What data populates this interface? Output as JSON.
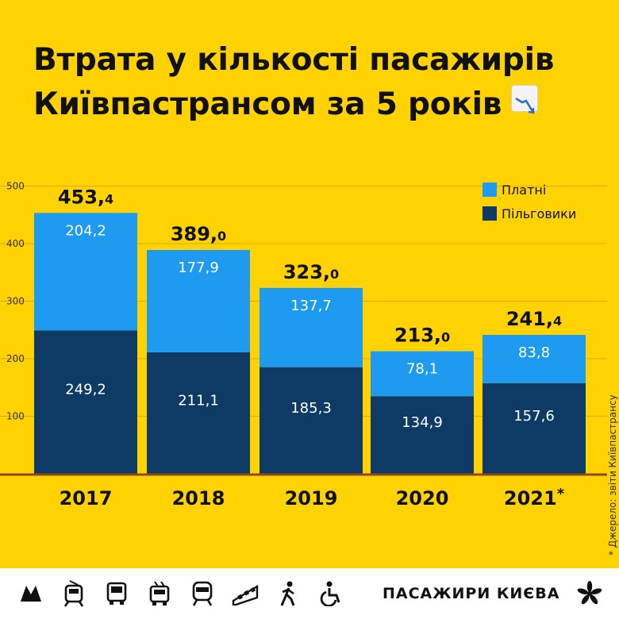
{
  "title": {
    "line1": "Втрата у кількості пасажирів",
    "line2": "Київпастрансом за 5 років",
    "icon": "chart-decreasing-icon"
  },
  "chart_data": {
    "type": "bar",
    "stacked": true,
    "categories": [
      "2017",
      "2018",
      "2019",
      "2020",
      "2021*"
    ],
    "series": [
      {
        "name": "Пільговики",
        "values": [
          249.2,
          211.1,
          185.3,
          134.9,
          157.6
        ],
        "color": "#0E3A66",
        "labels": [
          "249,2",
          "211,1",
          "185,3",
          "134,9",
          "157,6"
        ]
      },
      {
        "name": "Платні",
        "values": [
          204.2,
          177.9,
          137.7,
          78.1,
          83.8
        ],
        "color": "#1E9BF0",
        "labels": [
          "204,2",
          "177,9",
          "137,7",
          "78,1",
          "83,8"
        ]
      }
    ],
    "totals": [
      453.4,
      389.0,
      323.0,
      213.0,
      241.4
    ],
    "total_labels": [
      {
        "main": "453,",
        "dec": "4"
      },
      {
        "main": "389,",
        "dec": "0"
      },
      {
        "main": "323,",
        "dec": "0"
      },
      {
        "main": "213,",
        "dec": "0"
      },
      {
        "main": "241,",
        "dec": "4"
      }
    ],
    "y_ticks": [
      100,
      200,
      300,
      400,
      500
    ],
    "ylim": [
      0,
      500
    ],
    "grid": true,
    "legend": [
      "Платні",
      "Пільговики"
    ],
    "legend_position": "top-right"
  },
  "source": "* Джерело: звіти Київпастрансу",
  "footer": {
    "brand": "ПАСАЖИРИ КИЄВА",
    "icons": [
      "metro-icon",
      "tram-icon",
      "bus-icon",
      "trolleybus-icon",
      "train-icon",
      "funicular-icon",
      "pedestrian-icon",
      "wheelchair-icon"
    ],
    "logo": "chestnut-leaf-icon"
  },
  "colors": {
    "background": "#FFD200",
    "paid": "#1E9BF0",
    "benefits": "#0E3A66",
    "baseline": "#8B4A1C",
    "grid": "#E0A800"
  }
}
